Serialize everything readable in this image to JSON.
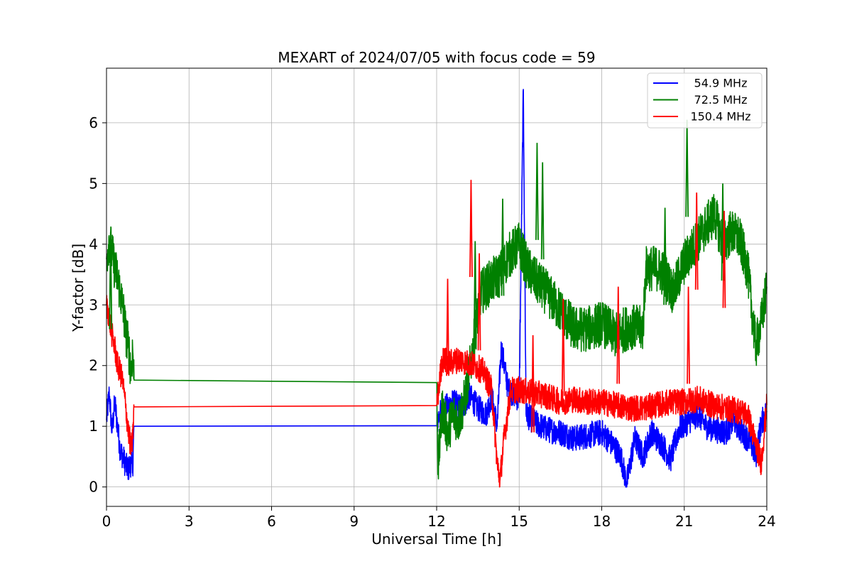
{
  "chart_data": {
    "type": "line",
    "title": "MEXART of 2024/07/05 with focus code = 59",
    "xlabel": "Universal Time [h]",
    "ylabel": "Y-factor [dB]",
    "xlim": [
      0,
      24
    ],
    "ylim": [
      -0.32,
      6.9
    ],
    "xticks": [
      0,
      3,
      6,
      9,
      12,
      15,
      18,
      21,
      24
    ],
    "yticks": [
      0,
      1,
      2,
      3,
      4,
      5,
      6
    ],
    "grid": true,
    "legend_position": "top-right",
    "series": [
      {
        "name": "54.9 MHz",
        "color": "#0000ff",
        "points": [
          [
            0.0,
            1.1
          ],
          [
            0.1,
            1.55
          ],
          [
            0.2,
            0.9
          ],
          [
            0.3,
            1.4
          ],
          [
            0.4,
            1.0
          ],
          [
            0.5,
            0.6
          ],
          [
            0.6,
            0.5
          ],
          [
            0.7,
            0.35
          ],
          [
            0.8,
            0.3
          ],
          [
            0.9,
            0.4
          ],
          [
            0.95,
            0.3
          ],
          [
            1.0,
            1.0
          ],
          [
            12.0,
            1.01
          ],
          [
            12.1,
            1.2
          ],
          [
            12.3,
            1.3
          ],
          [
            12.6,
            1.4
          ],
          [
            12.9,
            1.3
          ],
          [
            13.2,
            1.5
          ],
          [
            13.5,
            1.3
          ],
          [
            13.8,
            1.2
          ],
          [
            14.0,
            1.5
          ],
          [
            14.2,
            1.0
          ],
          [
            14.35,
            2.3
          ],
          [
            14.6,
            1.6
          ],
          [
            14.9,
            1.5
          ],
          [
            15.0,
            1.4
          ],
          [
            15.15,
            6.55
          ],
          [
            15.25,
            1.2
          ],
          [
            15.6,
            1.05
          ],
          [
            16.0,
            0.95
          ],
          [
            16.5,
            0.9
          ],
          [
            17.0,
            0.8
          ],
          [
            17.5,
            0.85
          ],
          [
            18.0,
            0.9
          ],
          [
            18.4,
            0.7
          ],
          [
            18.7,
            0.5
          ],
          [
            18.9,
            0.05
          ],
          [
            19.2,
            0.8
          ],
          [
            19.5,
            0.5
          ],
          [
            19.8,
            0.9
          ],
          [
            20.2,
            0.7
          ],
          [
            20.5,
            0.45
          ],
          [
            20.8,
            0.95
          ],
          [
            21.2,
            1.1
          ],
          [
            21.5,
            1.2
          ],
          [
            21.8,
            1.0
          ],
          [
            22.1,
            0.95
          ],
          [
            22.5,
            0.9
          ],
          [
            22.8,
            1.1
          ],
          [
            23.1,
            0.9
          ],
          [
            23.4,
            0.75
          ],
          [
            23.6,
            0.5
          ],
          [
            23.8,
            1.05
          ],
          [
            24.0,
            1.25
          ]
        ]
      },
      {
        "name": "72.5 MHz",
        "color": "#008000",
        "points": [
          [
            0.0,
            3.75
          ],
          [
            0.1,
            4.1
          ],
          [
            0.2,
            3.85
          ],
          [
            0.3,
            3.6
          ],
          [
            0.4,
            3.45
          ],
          [
            0.5,
            3.2
          ],
          [
            0.6,
            2.95
          ],
          [
            0.7,
            2.55
          ],
          [
            0.8,
            2.3
          ],
          [
            0.9,
            1.9
          ],
          [
            0.95,
            2.3
          ],
          [
            1.0,
            1.76
          ],
          [
            12.0,
            1.72
          ],
          [
            12.05,
            0.3
          ],
          [
            12.2,
            1.3
          ],
          [
            12.4,
            0.9
          ],
          [
            12.6,
            1.2
          ],
          [
            12.8,
            1.1
          ],
          [
            13.0,
            1.4
          ],
          [
            13.3,
            2.2
          ],
          [
            13.6,
            3.2
          ],
          [
            14.0,
            3.4
          ],
          [
            14.3,
            3.5
          ],
          [
            14.6,
            3.8
          ],
          [
            15.0,
            4.0
          ],
          [
            15.3,
            3.6
          ],
          [
            15.6,
            3.4
          ],
          [
            16.0,
            3.2
          ],
          [
            16.5,
            2.9
          ],
          [
            17.0,
            2.6
          ],
          [
            17.5,
            2.6
          ],
          [
            18.0,
            2.7
          ],
          [
            18.5,
            2.5
          ],
          [
            19.0,
            2.65
          ],
          [
            19.5,
            2.6
          ],
          [
            19.6,
            3.6
          ],
          [
            20.0,
            3.6
          ],
          [
            20.3,
            3.5
          ],
          [
            20.6,
            3.2
          ],
          [
            21.0,
            3.7
          ],
          [
            21.4,
            4.0
          ],
          [
            21.8,
            4.3
          ],
          [
            22.1,
            4.5
          ],
          [
            22.4,
            4.0
          ],
          [
            22.7,
            4.2
          ],
          [
            23.0,
            4.1
          ],
          [
            23.3,
            3.6
          ],
          [
            23.6,
            2.3
          ],
          [
            23.8,
            2.7
          ],
          [
            24.0,
            3.3
          ]
        ]
      },
      {
        "name": "150.4 MHz",
        "color": "#ff0000",
        "points": [
          [
            0.0,
            3.0
          ],
          [
            0.1,
            2.8
          ],
          [
            0.2,
            2.5
          ],
          [
            0.3,
            2.3
          ],
          [
            0.4,
            2.0
          ],
          [
            0.5,
            1.9
          ],
          [
            0.6,
            1.7
          ],
          [
            0.7,
            1.3
          ],
          [
            0.8,
            0.9
          ],
          [
            0.9,
            0.6
          ],
          [
            0.95,
            0.8
          ],
          [
            1.0,
            1.32
          ],
          [
            12.0,
            1.34
          ],
          [
            12.2,
            2.1
          ],
          [
            12.5,
            2.05
          ],
          [
            12.8,
            2.1
          ],
          [
            13.1,
            2.05
          ],
          [
            13.4,
            2.0
          ],
          [
            13.7,
            1.9
          ],
          [
            14.0,
            1.6
          ],
          [
            14.2,
            0.4
          ],
          [
            14.3,
            0.1
          ],
          [
            14.45,
            0.8
          ],
          [
            14.7,
            1.6
          ],
          [
            15.0,
            1.6
          ],
          [
            15.5,
            1.55
          ],
          [
            16.0,
            1.5
          ],
          [
            16.5,
            1.4
          ],
          [
            17.0,
            1.45
          ],
          [
            17.5,
            1.4
          ],
          [
            18.0,
            1.4
          ],
          [
            18.5,
            1.35
          ],
          [
            19.0,
            1.3
          ],
          [
            19.5,
            1.3
          ],
          [
            20.0,
            1.35
          ],
          [
            20.5,
            1.4
          ],
          [
            21.0,
            1.4
          ],
          [
            21.5,
            1.45
          ],
          [
            22.0,
            1.35
          ],
          [
            22.5,
            1.3
          ],
          [
            23.0,
            1.25
          ],
          [
            23.3,
            1.2
          ],
          [
            23.6,
            0.7
          ],
          [
            23.8,
            0.4
          ],
          [
            24.0,
            1.35
          ]
        ]
      }
    ],
    "spikes": [
      {
        "series": 1,
        "x": 0.15,
        "y": 4.2
      },
      {
        "series": 1,
        "x": 13.4,
        "y": 4.05
      },
      {
        "series": 1,
        "x": 14.4,
        "y": 4.75
      },
      {
        "series": 1,
        "x": 15.65,
        "y": 5.67
      },
      {
        "series": 1,
        "x": 15.85,
        "y": 5.35
      },
      {
        "series": 1,
        "x": 20.3,
        "y": 4.6
      },
      {
        "series": 1,
        "x": 21.1,
        "y": 6.05
      },
      {
        "series": 1,
        "x": 22.4,
        "y": 5.0
      },
      {
        "series": 2,
        "x": 12.4,
        "y": 3.43
      },
      {
        "series": 2,
        "x": 13.25,
        "y": 5.06
      },
      {
        "series": 2,
        "x": 13.55,
        "y": 3.85
      },
      {
        "series": 2,
        "x": 15.5,
        "y": 2.5
      },
      {
        "series": 2,
        "x": 16.6,
        "y": 3.1
      },
      {
        "series": 2,
        "x": 18.6,
        "y": 3.3
      },
      {
        "series": 2,
        "x": 21.15,
        "y": 3.3
      },
      {
        "series": 2,
        "x": 21.45,
        "y": 4.85
      },
      {
        "series": 2,
        "x": 22.45,
        "y": 4.55
      }
    ]
  }
}
